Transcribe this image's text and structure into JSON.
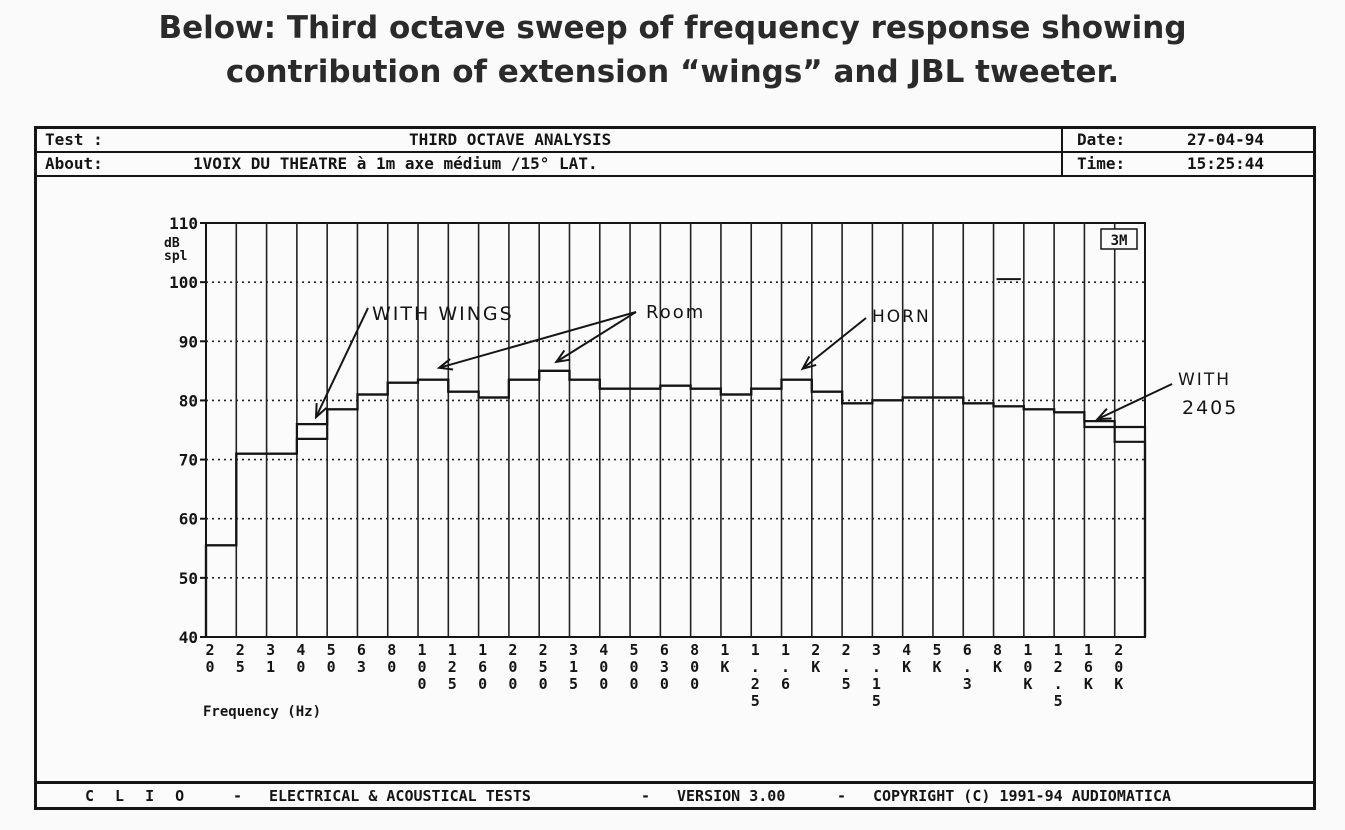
{
  "caption": {
    "line1": "Below: Third octave sweep of frequency response showing",
    "line2": "contribution of extension “wings” and JBL tweeter."
  },
  "header": {
    "test_label": "Test :",
    "title": "THIRD OCTAVE ANALYSIS",
    "about_label": "About:",
    "about_text": "1VOIX DU THEATRE à 1m axe médium /15° LAT.",
    "date_label": "Date:",
    "date_value": "27-04-94",
    "time_label": "Time:",
    "time_value": "15:25:44"
  },
  "footer": {
    "app": "C L I O",
    "dash": "-",
    "tests": "ELECTRICAL & ACOUSTICAL TESTS",
    "version": "VERSION 3.00",
    "copyright": "COPYRIGHT (C) 1991-94 AUDIOMATICA"
  },
  "chart_data": {
    "type": "bar",
    "title": "THIRD OCTAVE ANALYSIS",
    "xlabel": "Frequency (Hz)",
    "ylabel": "dB spl",
    "ylim": [
      40,
      110
    ],
    "yticks": [
      40,
      50,
      60,
      70,
      80,
      90,
      100,
      110
    ],
    "grid": true,
    "categories": [
      "20",
      "25",
      "31.5",
      "40",
      "50",
      "63",
      "80",
      "100",
      "125",
      "160",
      "200",
      "250",
      "315",
      "400",
      "500",
      "630",
      "800",
      "1K",
      "1.25K",
      "1.6K",
      "2K",
      "2.5K",
      "3.15K",
      "4K",
      "5K",
      "6.3K",
      "8K",
      "10K",
      "12.5K",
      "16K",
      "20K"
    ],
    "tick_labels": [
      "2 0",
      "2 5",
      "3 1",
      "4 0",
      "5 0",
      "6 3",
      "8 0",
      "1 0 0",
      "1 2 5",
      "1 6 0",
      "2 0 0",
      "2 5 0",
      "3 1 5",
      "4 0 0",
      "5 0 0",
      "6 3 0",
      "8 0 0",
      "1 K",
      "1 . 2 5",
      "1 . 6",
      "2 K",
      "2 . 5",
      "3 . 1 5",
      "4 K",
      "5 K",
      "6 . 3",
      "8 K",
      "1 0 K",
      "1 2 . 5",
      "1 6 K",
      "2 0 K"
    ],
    "series": [
      {
        "values": [
          55.5,
          71,
          71,
          73.5,
          78.5,
          81,
          83,
          83.5,
          81.5,
          80.5,
          83.5,
          85,
          83.5,
          82,
          82,
          82.5,
          82,
          81,
          82,
          83.5,
          81.5,
          79.5,
          80,
          80.5,
          80.5,
          79.5,
          79,
          78.5,
          78,
          75.5,
          73
        ]
      },
      {
        "values": [
          55.5,
          71,
          71,
          76,
          78.5,
          81,
          83,
          83.5,
          81.5,
          80.5,
          83.5,
          85,
          83.5,
          82,
          82,
          82.5,
          82,
          81,
          82,
          83.5,
          81.5,
          79.5,
          80,
          80.5,
          80.5,
          79.5,
          79,
          78.5,
          78,
          76.5,
          75.5
        ]
      }
    ],
    "marker_box": {
      "label": "3M",
      "value": 100.5,
      "band_index": 26
    },
    "annotations": [
      {
        "text": "WITH WINGS",
        "target_band": 3,
        "target_value": 76.5
      },
      {
        "text": "Room",
        "target_band": 7,
        "target_value": 84.5
      },
      {
        "text": "Room",
        "target_band": 11,
        "target_value": 85.5
      },
      {
        "text": "HORN",
        "target_band": 19,
        "target_value": 84
      },
      {
        "text": "WITH",
        "target_band": 29,
        "target_value": 76.5
      },
      {
        "text": "2405",
        "target_band": 29,
        "target_value": 76.5
      }
    ]
  }
}
